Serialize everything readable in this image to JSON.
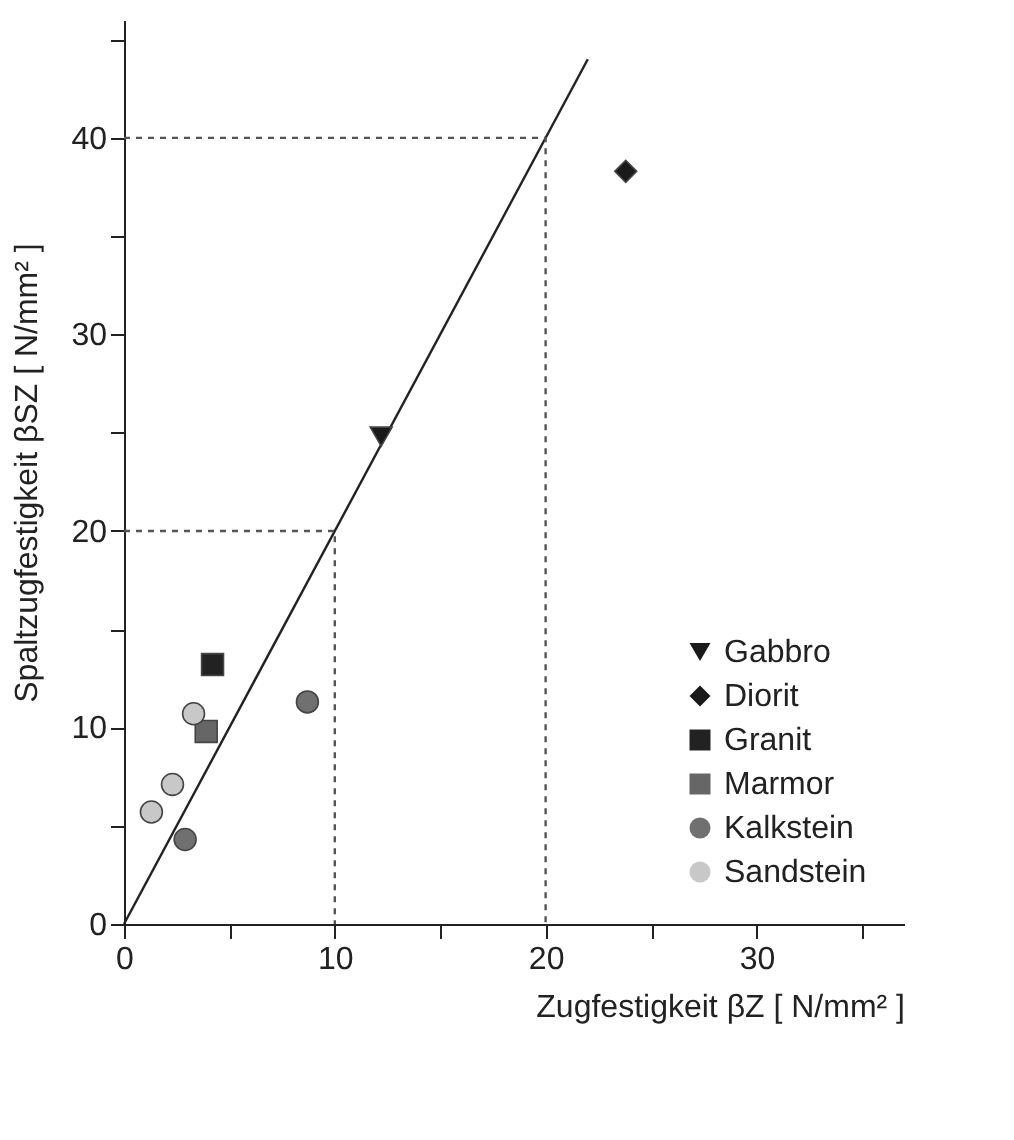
{
  "chart_data": {
    "type": "scatter",
    "xlabel": "Zugfestigkeit βZ [ N/mm² ]",
    "ylabel": "Spaltzugfestigkeit βSZ [ N/mm² ]",
    "xlim": [
      0,
      37
    ],
    "ylim": [
      0,
      46
    ],
    "xticks": [
      0,
      {
        "value": 5,
        "label": null
      },
      10,
      {
        "value": 15,
        "label": null
      },
      20,
      {
        "value": 25,
        "label": null
      },
      30,
      {
        "value": 35,
        "label": null
      }
    ],
    "yticks": [
      0,
      {
        "value": 5,
        "label": null
      },
      10,
      {
        "value": 15,
        "label": null
      },
      20,
      {
        "value": 25,
        "label": null
      },
      30,
      {
        "value": 35,
        "label": null
      },
      40,
      {
        "value": 45,
        "label": null
      }
    ],
    "grid": false,
    "legend": "bottom right",
    "series": [
      {
        "type": "line",
        "line_style": "solid",
        "color": "#222222",
        "x": [
          0,
          22
        ],
        "values": [
          0,
          44
        ]
      },
      {
        "type": "line",
        "line_style": "dashed",
        "color": "#555555",
        "x": [
          0,
          10,
          10
        ],
        "values": [
          20,
          20,
          0
        ]
      },
      {
        "type": "line",
        "line_style": "dashed",
        "color": "#555555",
        "x": [
          0,
          20,
          20
        ],
        "values": [
          40,
          40,
          0
        ]
      },
      {
        "name": "Gabbro",
        "marker": "triangle-down",
        "color": "#1a1a1a",
        "x": [
          12.2
        ],
        "values": [
          24.8
        ]
      },
      {
        "name": "Diorit",
        "marker": "diamond",
        "color": "#1a1a1a",
        "x": [
          23.8
        ],
        "values": [
          38.3
        ]
      },
      {
        "name": "Granit",
        "marker": "square",
        "color": "#222222",
        "x": [
          4.2
        ],
        "values": [
          13.2
        ]
      },
      {
        "name": "Marmor",
        "marker": "square",
        "color": "#666666",
        "x": [
          3.9
        ],
        "values": [
          9.8
        ]
      },
      {
        "name": "Kalkstein",
        "marker": "circle",
        "color": "#707070",
        "x": [
          8.7,
          2.9
        ],
        "values": [
          11.3,
          4.3
        ]
      },
      {
        "name": "Sandstein",
        "marker": "circle",
        "color": "#c8c8c8",
        "x": [
          3.3,
          2.3,
          1.3
        ],
        "values": [
          10.7,
          7.1,
          5.7
        ]
      }
    ]
  }
}
